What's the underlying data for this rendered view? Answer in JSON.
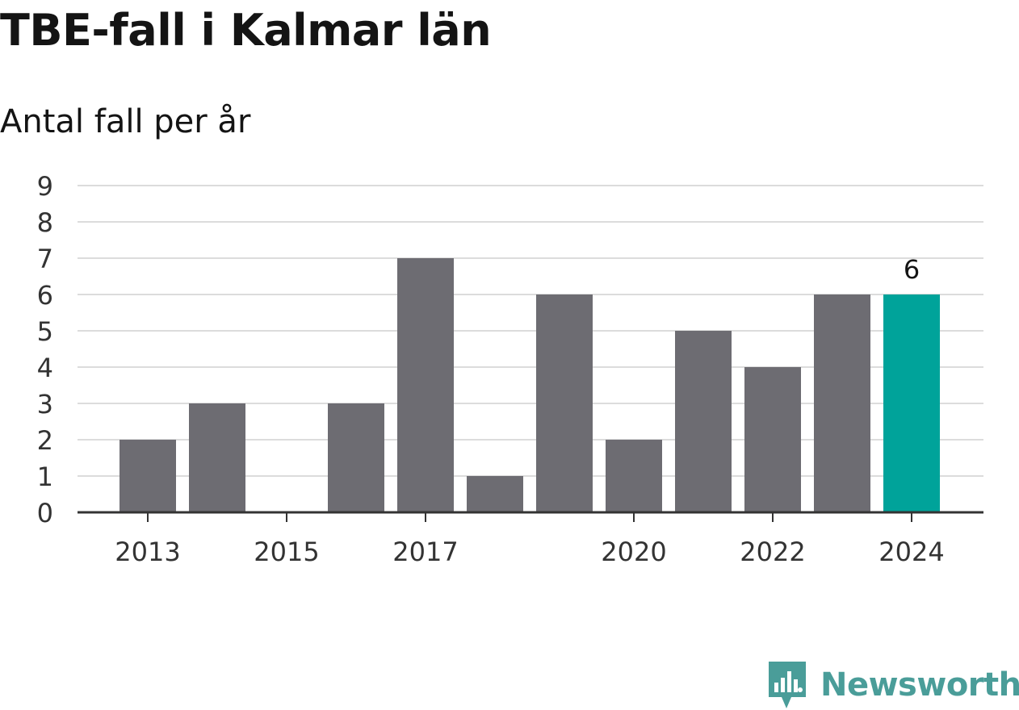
{
  "chart_data": {
    "type": "bar",
    "title": "TBE-fall i Kalmar län",
    "subtitle": "Antal fall per år",
    "x": [
      2013,
      2014,
      2015,
      2016,
      2017,
      2018,
      2019,
      2020,
      2021,
      2022,
      2023,
      2024
    ],
    "values": [
      2,
      3,
      0,
      3,
      7,
      1,
      6,
      2,
      5,
      4,
      6,
      6
    ],
    "x_tick_labels": [
      "2013",
      "2015",
      "2017",
      "2020",
      "2022",
      "2024"
    ],
    "y_ticks": [
      0,
      1,
      2,
      3,
      4,
      5,
      6,
      7,
      8,
      9
    ],
    "ylim": [
      0,
      9
    ],
    "highlight": {
      "x": 2024,
      "label": "6"
    },
    "grid": true,
    "colors": {
      "bar": "#6d6c72",
      "highlight": "#00a39a",
      "grid": "#dcdcdc",
      "axis": "#333333"
    }
  },
  "brand": {
    "name": "Newsworthy",
    "icon": "newsworthy-logo-icon",
    "color": "#4a9d99"
  }
}
